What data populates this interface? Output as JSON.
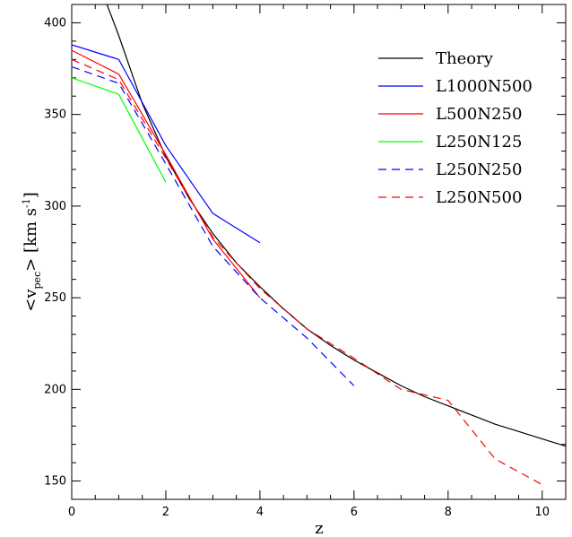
{
  "chart_data": {
    "type": "line",
    "xlabel": "z",
    "ylabel_prefix": "<v",
    "ylabel_sub": "pec",
    "ylabel_suffix": "> [km s",
    "ylabel_sup": "-1",
    "ylabel_close": "]",
    "xlim": [
      0,
      10.5
    ],
    "ylim": [
      140,
      410
    ],
    "xticks": [
      0,
      2,
      4,
      6,
      8,
      10
    ],
    "yticks": [
      150,
      200,
      250,
      300,
      350,
      400
    ],
    "grid": false,
    "legend_position": "top-right",
    "series": [
      {
        "name": "Theory",
        "color": "#000000",
        "dash": "solid",
        "x": [
          0.75,
          1.0,
          1.5,
          2.0,
          2.5,
          3.0,
          3.5,
          4.0,
          4.5,
          5.0,
          5.5,
          6.0,
          6.5,
          7.0,
          7.5,
          8.0,
          8.5,
          9.0,
          9.5,
          10.0,
          10.5
        ],
        "y": [
          410,
          393,
          356,
          327,
          304,
          285,
          269,
          256,
          244,
          233,
          224,
          216,
          209,
          202,
          196,
          191,
          186,
          181,
          177,
          173,
          169
        ]
      },
      {
        "name": "L1000N500",
        "color": "#0000ff",
        "dash": "solid",
        "x": [
          0,
          1,
          2,
          3,
          4
        ],
        "y": [
          388,
          380,
          333,
          296,
          280
        ]
      },
      {
        "name": "L500N250",
        "color": "#ff0000",
        "dash": "solid",
        "x": [
          0,
          1,
          2,
          3,
          4
        ],
        "y": [
          385,
          372,
          328,
          282,
          250
        ]
      },
      {
        "name": "L250N125",
        "color": "#00ff00",
        "dash": "solid",
        "x": [
          0,
          1,
          2
        ],
        "y": [
          370,
          361,
          313
        ]
      },
      {
        "name": "L250N250",
        "color": "#0000ff",
        "dash": "dashed",
        "x": [
          0,
          1,
          2,
          3,
          4,
          5,
          6
        ],
        "y": [
          376,
          367,
          323,
          278,
          250,
          228,
          202
        ]
      },
      {
        "name": "L250N500",
        "color": "#ff0000",
        "dash": "dashed",
        "x": [
          0,
          1,
          2,
          3,
          4,
          5,
          6,
          7,
          8,
          9,
          10
        ],
        "y": [
          380,
          369,
          326,
          283,
          255,
          233,
          217,
          200,
          194,
          162,
          148
        ]
      }
    ]
  }
}
